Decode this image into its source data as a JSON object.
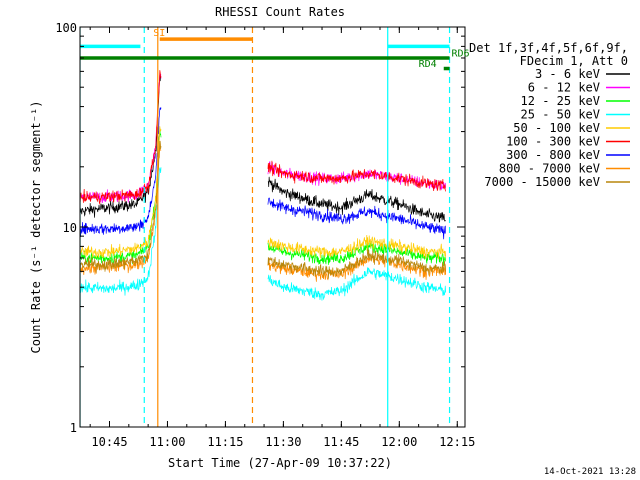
{
  "chart_data": {
    "type": "line",
    "title": "RHESSI Count Rates",
    "xlabel": "Start Time (27-Apr-09 10:37:22)",
    "ylabel": "Count Rate (s⁻¹ detector segment⁻¹)",
    "x_unit": "time of day (hh:mm)",
    "xlim": [
      "10:37:22",
      "12:17:00"
    ],
    "ylim": [
      1,
      100
    ],
    "y_scale": "log",
    "x_ticks": [
      "10:45",
      "11:00",
      "11:15",
      "11:30",
      "11:45",
      "12:00",
      "12:15"
    ],
    "y_ticks": [
      1,
      10,
      100
    ],
    "grid": false,
    "legend_position": "top-right, outside plot",
    "legend_header": [
      "Det 1f,3f,4f,5f,6f,9f,",
      "FDecim 1, Att 0"
    ],
    "footer_date": "14-Oct-2021 13:28",
    "series": [
      {
        "name": "3 - 6 keV",
        "color": "#000000",
        "x": [
          "10:37",
          "10:45",
          "10:52",
          "10:55",
          "10:57",
          "10:58",
          "11:26",
          "11:30",
          "11:40",
          "11:45",
          "11:52",
          "12:00",
          "12:07",
          "12:12"
        ],
        "values": [
          12,
          12.5,
          13,
          15,
          24,
          57,
          17,
          15,
          13,
          12.5,
          14.5,
          13,
          11.5,
          11
        ]
      },
      {
        "name": "6 - 12 keV",
        "color": "#ff00ff",
        "x": [
          "10:37",
          "10:45",
          "10:52",
          "10:55",
          "10:57",
          "10:58",
          "11:26",
          "11:30",
          "11:40",
          "11:45",
          "11:52",
          "12:00",
          "12:07",
          "12:12"
        ],
        "values": [
          14,
          14.2,
          14.5,
          16,
          26,
          58,
          20,
          18.5,
          17.5,
          17.5,
          18.5,
          17.5,
          16.5,
          16
        ]
      },
      {
        "name": "12 - 25 keV",
        "color": "#00ff00",
        "x": [
          "10:37",
          "10:45",
          "10:52",
          "10:55",
          "10:57",
          "10:58",
          "11:26",
          "11:30",
          "11:40",
          "11:45",
          "11:52",
          "12:00",
          "12:07",
          "12:12"
        ],
        "values": [
          7,
          7,
          7.2,
          8,
          14,
          30,
          8,
          7.5,
          7,
          7,
          8,
          7.5,
          7,
          7
        ]
      },
      {
        "name": "25 - 50 keV",
        "color": "#00ffff",
        "x": [
          "10:37",
          "10:45",
          "10:52",
          "10:55",
          "10:57",
          "10:58",
          "11:26",
          "11:30",
          "11:40",
          "11:45",
          "11:52",
          "12:00",
          "12:07",
          "12:12"
        ],
        "values": [
          5,
          4.9,
          5.1,
          5.6,
          10,
          20,
          5.5,
          5,
          4.6,
          4.8,
          6,
          5.5,
          5,
          4.8
        ]
      },
      {
        "name": "50 - 100 keV",
        "color": "#ffcc00",
        "x": [
          "10:37",
          "10:45",
          "10:52",
          "10:55",
          "10:57",
          "10:58",
          "11:26",
          "11:30",
          "11:40",
          "11:45",
          "11:52",
          "12:00",
          "12:07",
          "12:12"
        ],
        "values": [
          7.5,
          7.5,
          7.8,
          8.5,
          14,
          30,
          8.5,
          8,
          7.5,
          7.5,
          8.5,
          8,
          7.5,
          7.5
        ]
      },
      {
        "name": "100 - 300 keV",
        "color": "#ff0000",
        "x": [
          "10:37",
          "10:45",
          "10:52",
          "10:55",
          "10:57",
          "10:58",
          "11:26",
          "11:30",
          "11:40",
          "11:45",
          "11:52",
          "12:00",
          "12:07",
          "12:12"
        ],
        "values": [
          14,
          14.2,
          14.5,
          16,
          26,
          58,
          20,
          18.5,
          17.5,
          17.5,
          18.5,
          17.5,
          16.5,
          16
        ]
      },
      {
        "name": "300 - 800 keV",
        "color": "#0000ff",
        "x": [
          "10:37",
          "10:45",
          "10:52",
          "10:55",
          "10:57",
          "10:58",
          "11:26",
          "11:30",
          "11:40",
          "11:45",
          "11:52",
          "12:00",
          "12:07",
          "12:12"
        ],
        "values": [
          9.8,
          9.8,
          10,
          11,
          18,
          40,
          13.5,
          12.5,
          11.5,
          11,
          12,
          11,
          10,
          9.5
        ]
      },
      {
        "name": "800 - 7000 keV",
        "color": "#ff8c00",
        "x": [
          "10:37",
          "10:45",
          "10:52",
          "10:55",
          "10:57",
          "10:58",
          "11:26",
          "11:30",
          "11:40",
          "11:45",
          "11:52",
          "12:00",
          "12:07",
          "12:12"
        ],
        "values": [
          6.2,
          6.3,
          6.5,
          7,
          12,
          25,
          6.5,
          6.2,
          5.8,
          5.8,
          7,
          6.5,
          6,
          6
        ]
      },
      {
        "name": "7000 - 15000 keV",
        "color": "#b8860b",
        "x": [
          "10:37",
          "10:45",
          "10:52",
          "10:55",
          "10:57",
          "10:58",
          "11:26",
          "11:30",
          "11:40",
          "11:45",
          "11:52",
          "12:00",
          "12:07",
          "12:12"
        ],
        "values": [
          6.5,
          6.5,
          6.8,
          7.2,
          12.5,
          26,
          6.8,
          6.5,
          6,
          6,
          7.2,
          6.8,
          6.2,
          6.2
        ]
      }
    ],
    "vertical_lines": [
      {
        "color": "#00ffff",
        "style": "solid",
        "x": "10:37:22"
      },
      {
        "color": "#00ffff",
        "style": "dashed",
        "x": "10:54"
      },
      {
        "color": "#ff8c00",
        "style": "solid",
        "x": "10:57:30"
      },
      {
        "color": "#ff8c00",
        "style": "dashed",
        "x": "11:22"
      },
      {
        "color": "#00ffff",
        "style": "solid",
        "x": "11:57"
      },
      {
        "color": "#00ffff",
        "style": "dashed",
        "x": "12:13"
      }
    ],
    "interval_bars": [
      {
        "color": "#00ffff",
        "x_start": "10:37:22",
        "x_end": "10:53",
        "y": 80
      },
      {
        "color": "#ff8c00",
        "x_start": "10:58",
        "x_end": "11:22",
        "y": 87
      },
      {
        "color": "#00ffff",
        "x_start": "11:57",
        "x_end": "12:13",
        "y": 80
      },
      {
        "color": "#008000",
        "x_start": "10:37:22",
        "x_end": "12:13",
        "y": 70
      },
      {
        "color": "#008000",
        "x_start": "12:11:30",
        "x_end": "12:13",
        "y": 62
      }
    ],
    "markers": [
      {
        "label": "SI",
        "color": "#ff8c00",
        "x": "10:56:20",
        "y": 90
      },
      {
        "label": "RD6",
        "color": "#008000",
        "x": "12:13:30",
        "y": 71
      },
      {
        "label": "RD4",
        "color": "#008000",
        "x": "12:05",
        "y": 63
      }
    ]
  }
}
